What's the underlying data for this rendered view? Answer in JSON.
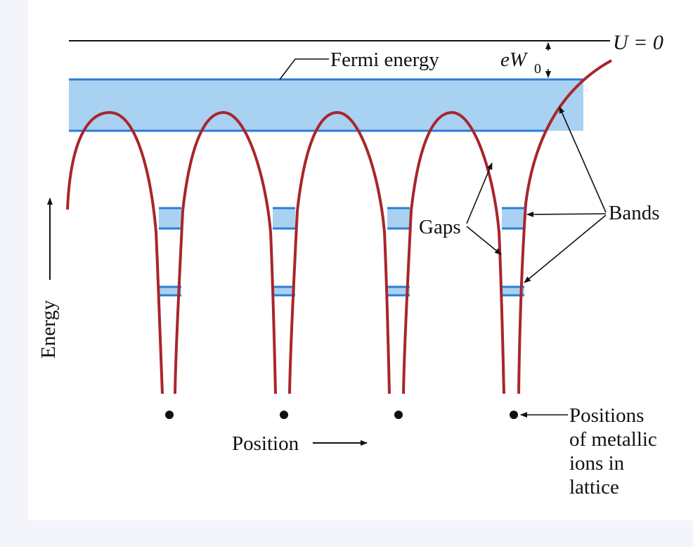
{
  "labels": {
    "u_zero": "U = 0",
    "fermi": "Fermi energy",
    "ew0_main": "eW",
    "ew0_sub": "0",
    "gaps": "Gaps",
    "bands": "Bands",
    "energy": "Energy",
    "position": "Position",
    "ions": [
      "Positions",
      "of metallic",
      "ions in",
      "lattice"
    ]
  },
  "colors": {
    "band_fill": "#a9d1f2",
    "band_line": "#2a7fd4",
    "potential": "#a8262c",
    "ink": "#111111",
    "background": "#f4f5fb"
  },
  "ions_count": 4,
  "bands_count": 2
}
